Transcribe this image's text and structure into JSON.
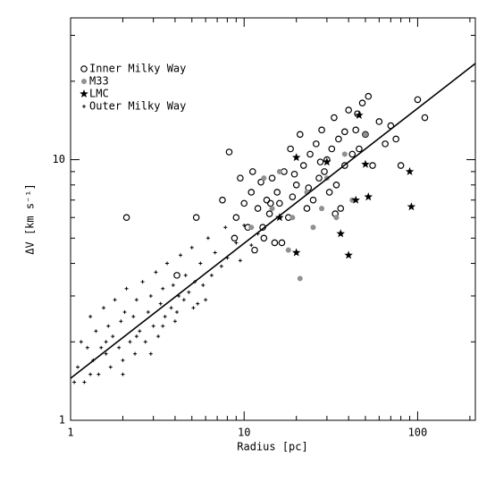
{
  "chart_data": {
    "type": "scatter",
    "x_label": "Radius [pc]",
    "y_label": "ΔV [km s⁻¹]",
    "log_x": true,
    "log_y": true,
    "xlim": [
      1,
      215
    ],
    "ylim": [
      1,
      35
    ],
    "xticks": [
      1,
      10,
      100
    ],
    "yticks": [
      1,
      10
    ],
    "xminorticks": [
      2,
      3,
      4,
      5,
      6,
      7,
      8,
      9,
      20,
      30,
      40,
      50,
      60,
      70,
      80,
      90,
      200
    ],
    "yminorticks": [
      2,
      3,
      4,
      5,
      6,
      7,
      8,
      9,
      20,
      30
    ],
    "legend": "upper left",
    "series": [
      {
        "name": "Inner Milky Way",
        "marker": "open-circle",
        "color": "#000000",
        "x": [
          2.1,
          4.1,
          5.3,
          7.5,
          8.2,
          9.0,
          10,
          10.5,
          11,
          11.5,
          12,
          12.5,
          13,
          13.5,
          14,
          14.5,
          15,
          15.5,
          16,
          17,
          18,
          18.5,
          19,
          20,
          21,
          22,
          23,
          24,
          25,
          26,
          27,
          28,
          29,
          30,
          31,
          32,
          33,
          34,
          35,
          36,
          38,
          40,
          42,
          44,
          46,
          48,
          50,
          52,
          55,
          60,
          65,
          70,
          75,
          80,
          100,
          110,
          8.8,
          9.5,
          11.2,
          12.8,
          14.2,
          16.5,
          19.5,
          23.5,
          27.5,
          33.5,
          38,
          45
        ],
        "y": [
          6.0,
          3.6,
          6.0,
          7.0,
          10.7,
          6.0,
          6.8,
          5.5,
          7.5,
          4.5,
          6.5,
          8.2,
          5.0,
          7.0,
          6.2,
          8.5,
          4.8,
          7.5,
          6.8,
          9.0,
          6.0,
          11.0,
          7.2,
          8.0,
          12.5,
          9.5,
          6.5,
          10.5,
          7.0,
          11.5,
          8.5,
          13.0,
          9.0,
          10.0,
          7.5,
          11.0,
          14.5,
          8.0,
          12.0,
          6.5,
          9.5,
          15.5,
          10.5,
          13.0,
          11.0,
          16.5,
          12.5,
          17.5,
          9.5,
          14.0,
          11.5,
          13.5,
          12.0,
          9.5,
          17.0,
          14.5,
          5.0,
          8.5,
          9.0,
          5.5,
          6.8,
          4.8,
          8.8,
          7.8,
          9.8,
          6.2,
          12.8,
          15.0
        ]
      },
      {
        "name": "M33",
        "marker": "filled-circle",
        "color": "#909090",
        "x": [
          11,
          13,
          14.5,
          16,
          18,
          19,
          21,
          23,
          25,
          28,
          30,
          34,
          38,
          42,
          50
        ],
        "y": [
          5.5,
          8.5,
          6.5,
          9.0,
          4.5,
          6.0,
          3.5,
          7.5,
          5.5,
          6.5,
          8.5,
          6.0,
          10.5,
          7.0,
          12.5
        ]
      },
      {
        "name": "LMC",
        "marker": "star",
        "color": "#000000",
        "x": [
          16,
          20,
          20,
          30,
          36,
          40,
          44,
          46,
          50,
          52,
          90,
          92
        ],
        "y": [
          6.0,
          10.2,
          4.4,
          9.8,
          5.2,
          4.3,
          7.0,
          14.8,
          9.6,
          7.2,
          9.0,
          6.6
        ]
      },
      {
        "name": "Outer Milky Way",
        "marker": "plus",
        "color": "#000000",
        "x": [
          1.1,
          1.15,
          1.2,
          1.25,
          1.3,
          1.35,
          1.4,
          1.45,
          1.5,
          1.55,
          1.6,
          1.65,
          1.7,
          1.75,
          1.8,
          1.9,
          1.95,
          2.0,
          2.05,
          2.1,
          2.2,
          2.3,
          2.35,
          2.4,
          2.5,
          2.6,
          2.7,
          2.8,
          2.9,
          3.0,
          3.1,
          3.2,
          3.3,
          3.4,
          3.5,
          3.6,
          3.8,
          3.9,
          4.0,
          4.2,
          4.3,
          4.5,
          4.6,
          4.8,
          5.0,
          5.2,
          5.4,
          5.6,
          5.8,
          6.2,
          6.5,
          6.8,
          7.4,
          7.8,
          8.0,
          9.0,
          9.5,
          10,
          11,
          12,
          1.05,
          1.3,
          1.6,
          2.0,
          2.4,
          2.9,
          3.4,
          4.1,
          5.1,
          6.0
        ],
        "y": [
          1.6,
          2.0,
          1.4,
          1.9,
          2.5,
          1.7,
          2.2,
          1.5,
          1.9,
          2.7,
          1.8,
          2.3,
          1.6,
          2.1,
          2.9,
          1.9,
          2.4,
          1.7,
          2.6,
          3.2,
          2.0,
          2.5,
          1.8,
          2.9,
          2.2,
          3.4,
          2.0,
          2.6,
          3.0,
          2.3,
          3.7,
          2.1,
          2.8,
          3.2,
          2.5,
          4.0,
          2.7,
          3.3,
          2.4,
          3.0,
          4.3,
          2.9,
          3.6,
          3.1,
          4.6,
          3.4,
          2.8,
          4.0,
          3.3,
          5.0,
          3.6,
          4.4,
          3.9,
          5.5,
          4.2,
          4.8,
          4.1,
          5.6,
          4.7,
          5.2,
          1.4,
          1.5,
          2.0,
          1.5,
          2.1,
          1.8,
          2.3,
          2.6,
          2.7,
          2.9
        ]
      }
    ],
    "fit": {
      "x": [
        1,
        215
      ],
      "y": [
        1.45,
        23.4
      ]
    }
  }
}
